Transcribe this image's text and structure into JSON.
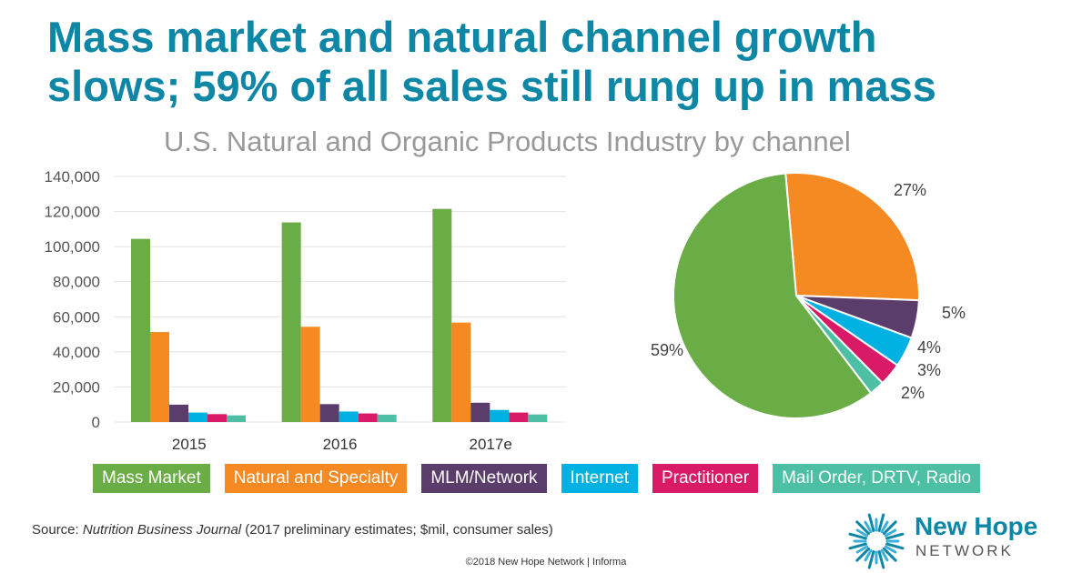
{
  "title_lines": [
    "Mass market and natural channel growth",
    "slows; 59% of all sales still rung up in mass"
  ],
  "chart_data": [
    {
      "type": "bar",
      "title": "U.S. Natural and Organic Products Industry by channel",
      "categories": [
        "2015",
        "2016",
        "2017e"
      ],
      "ylim": [
        0,
        140000
      ],
      "yticks": [
        "0",
        "20,000",
        "40,000",
        "60,000",
        "80,000",
        "100,000",
        "120,000",
        "140,000"
      ],
      "grid": true,
      "series": [
        {
          "name": "Mass Market",
          "color": "#6aac46",
          "values": [
            104400,
            113800,
            121500
          ]
        },
        {
          "name": "Natural and Specialty",
          "color": "#f58a22",
          "values": [
            51300,
            54300,
            56700
          ]
        },
        {
          "name": "MLM/Network",
          "color": "#5a3d6b",
          "values": [
            9900,
            10200,
            11000
          ]
        },
        {
          "name": "Internet",
          "color": "#00b1e1",
          "values": [
            5400,
            6000,
            6900
          ]
        },
        {
          "name": "Practitioner",
          "color": "#d91b67",
          "values": [
            4500,
            4900,
            5400
          ]
        },
        {
          "name": "Mail Order, DRTV, Radio",
          "color": "#4dbfa5",
          "values": [
            3800,
            4200,
            4300
          ]
        }
      ],
      "legend": "bottom"
    },
    {
      "type": "pie",
      "slices": [
        {
          "name": "Natural and Specialty",
          "value": 27,
          "label": "27%",
          "color": "#f58a22"
        },
        {
          "name": "MLM/Network",
          "value": 5,
          "label": "5%",
          "color": "#5a3d6b"
        },
        {
          "name": "Internet",
          "value": 4,
          "label": "4%",
          "color": "#00b1e1"
        },
        {
          "name": "Practitioner",
          "value": 3,
          "label": "3%",
          "color": "#d91b67"
        },
        {
          "name": "Mail Order, DRTV, Radio",
          "value": 2,
          "label": "2%",
          "color": "#4dbfa5"
        },
        {
          "name": "Mass Market",
          "value": 59,
          "label": "59%",
          "color": "#6aac46"
        }
      ]
    }
  ],
  "source": {
    "prefix": "Source: ",
    "journal": "Nutrition Business Journal",
    "suffix": " (2017 preliminary estimates; $mil, consumer sales)"
  },
  "copyright": "©2018 New Hope Network | Informa",
  "logo": {
    "name": "New Hope",
    "sub": "NETWORK"
  }
}
